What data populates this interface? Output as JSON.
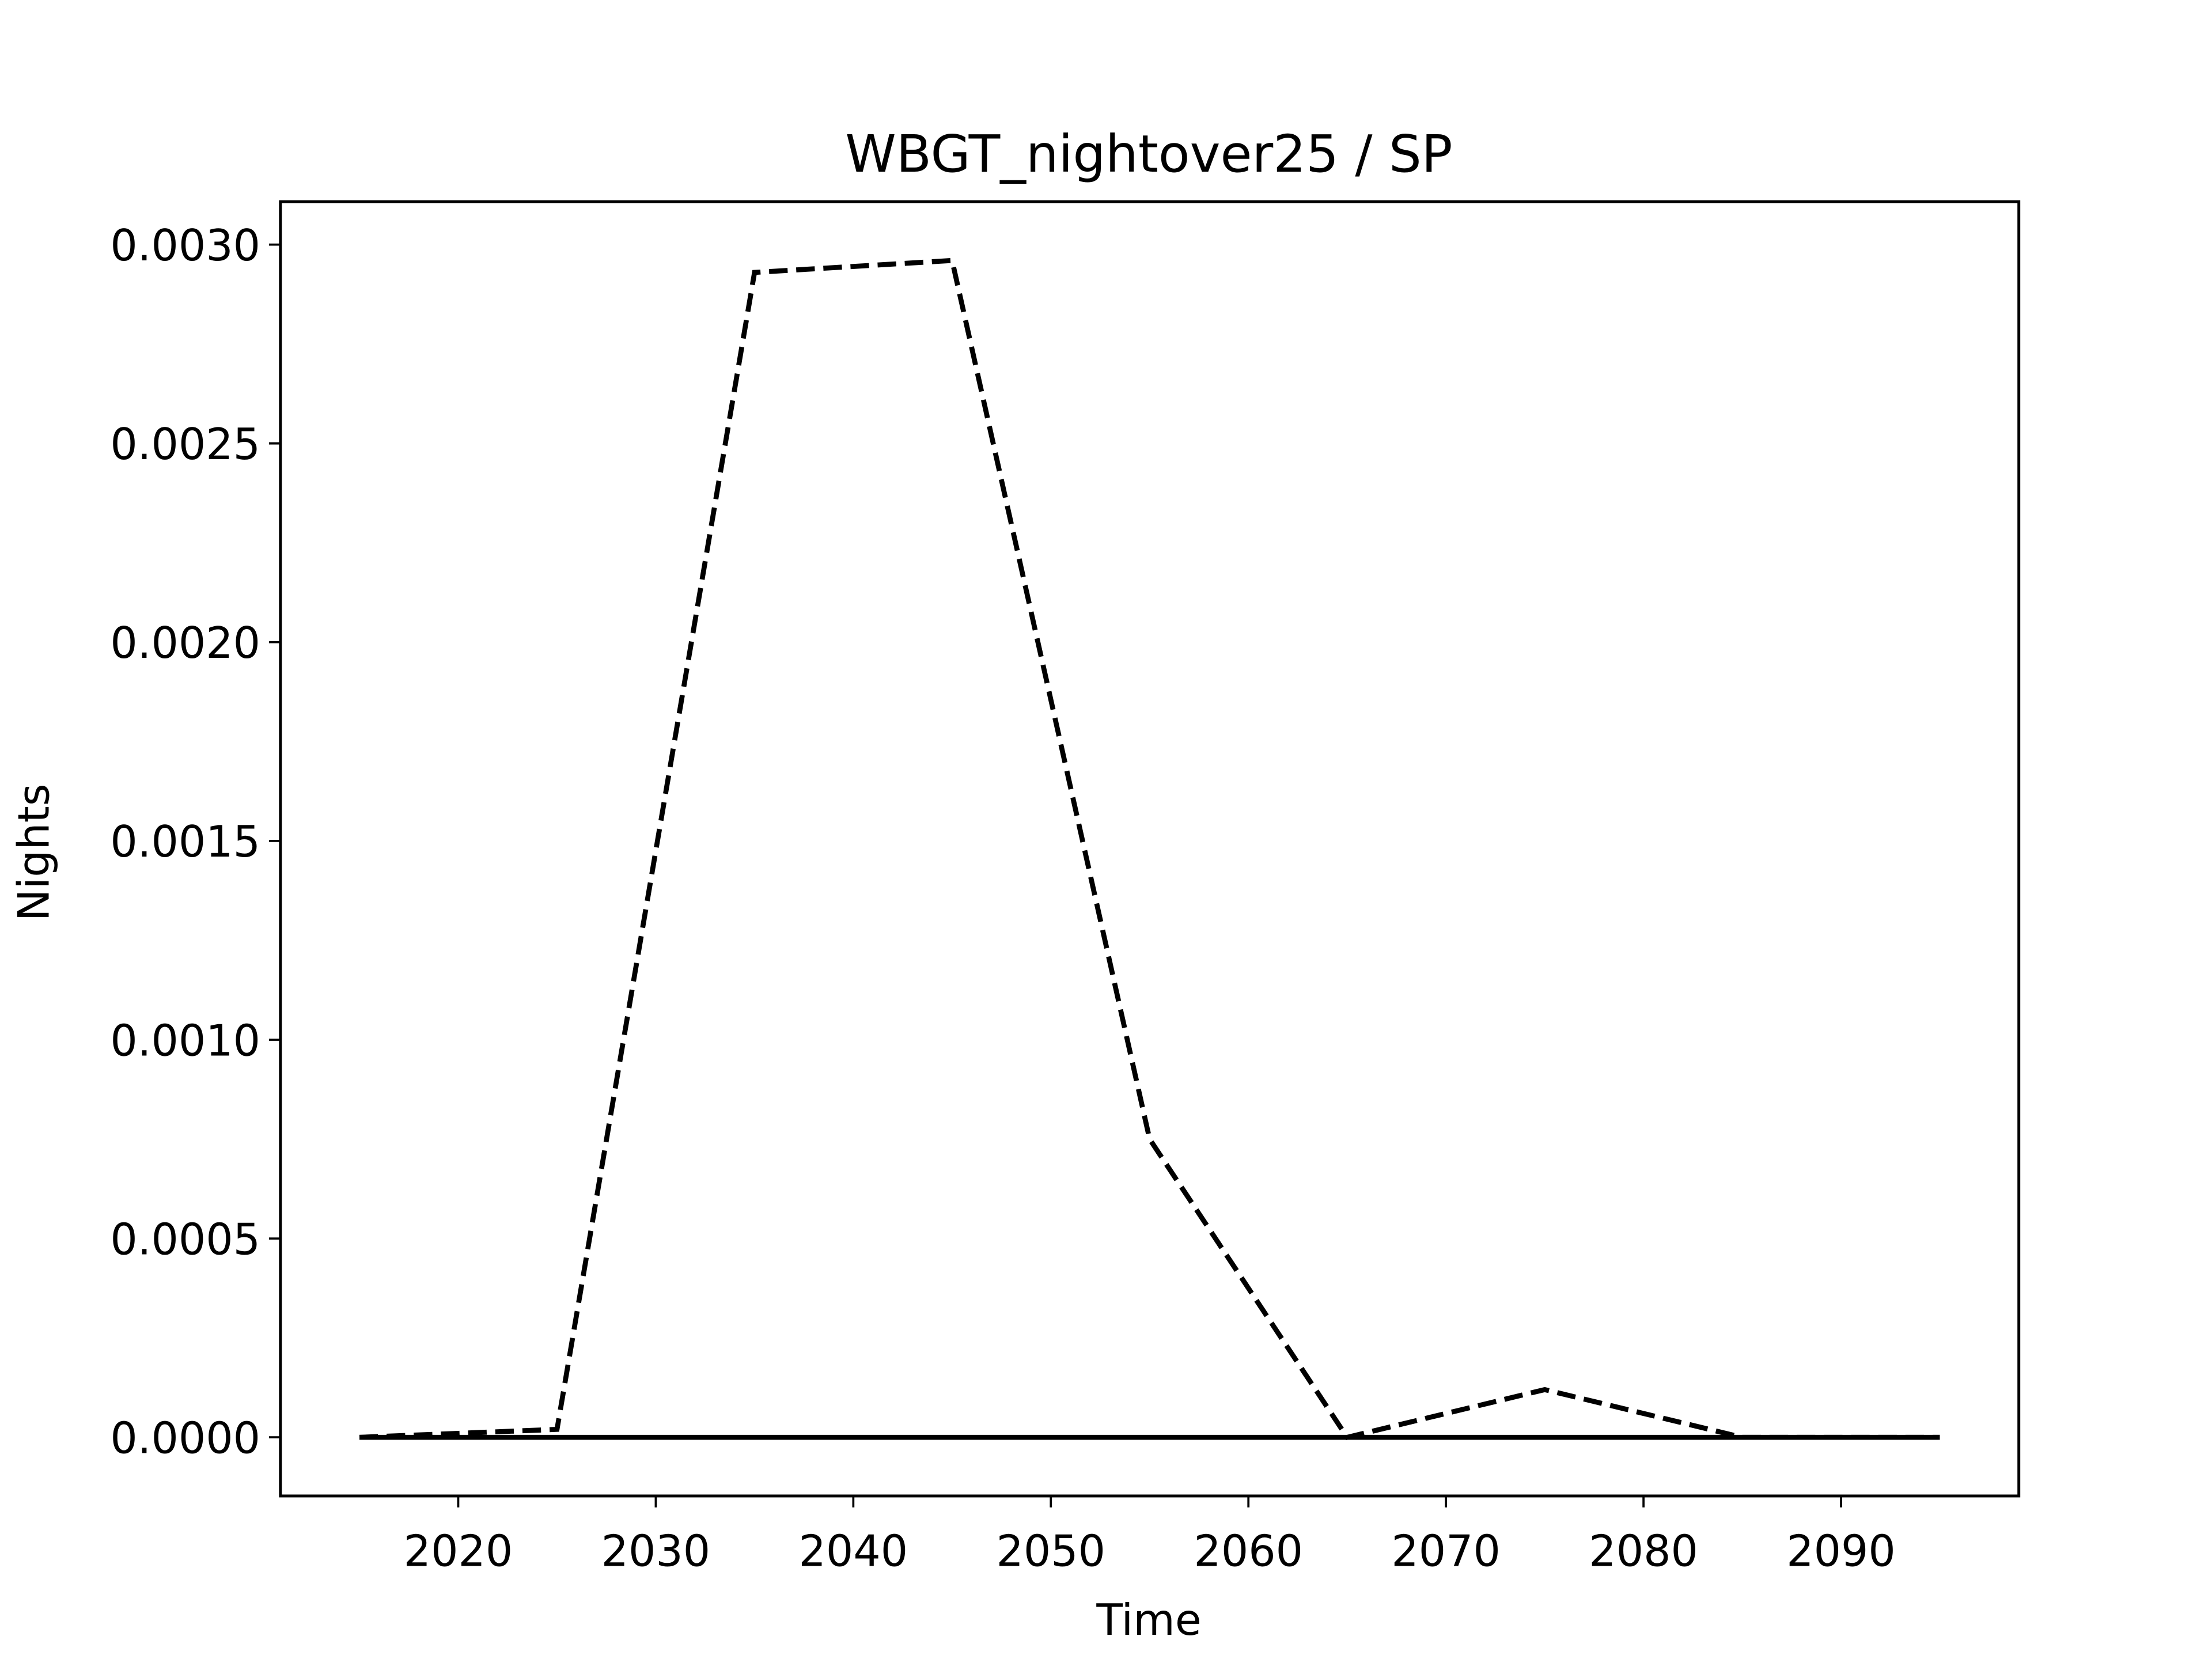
{
  "chart_data": {
    "type": "line",
    "title": "WBGT_nightover25 / SP",
    "x_label": "Time",
    "y_label": "Nights",
    "x": [
      2015,
      2025,
      2035,
      2045,
      2055,
      2065,
      2075,
      2085,
      2095
    ],
    "series": [
      {
        "color": "#000000",
        "linestyle": "dashed",
        "values": [
          0,
          2e-05,
          0.00293,
          0.00296,
          0.00075,
          0,
          0.00012,
          0,
          0
        ]
      },
      {
        "color": "#000000",
        "linestyle": "solid",
        "values": [
          0,
          0,
          0,
          0,
          0,
          0,
          0,
          0,
          0
        ]
      }
    ],
    "xlim": [
      2011,
      2099
    ],
    "ylim": [
      -0.0001475,
      0.003108
    ],
    "xticks": [
      2020,
      2030,
      2040,
      2050,
      2060,
      2070,
      2080,
      2090
    ],
    "yticks": [
      {
        "value": 0,
        "label": "0.0000"
      },
      {
        "value": 0.0005,
        "label": "0.0005"
      },
      {
        "value": 0.001,
        "label": "0.0010"
      },
      {
        "value": 0.0015,
        "label": "0.0015"
      },
      {
        "value": 0.002,
        "label": "0.0020"
      },
      {
        "value": 0.0025,
        "label": "0.0025"
      },
      {
        "value": 0.003,
        "label": "0.0030"
      }
    ]
  }
}
